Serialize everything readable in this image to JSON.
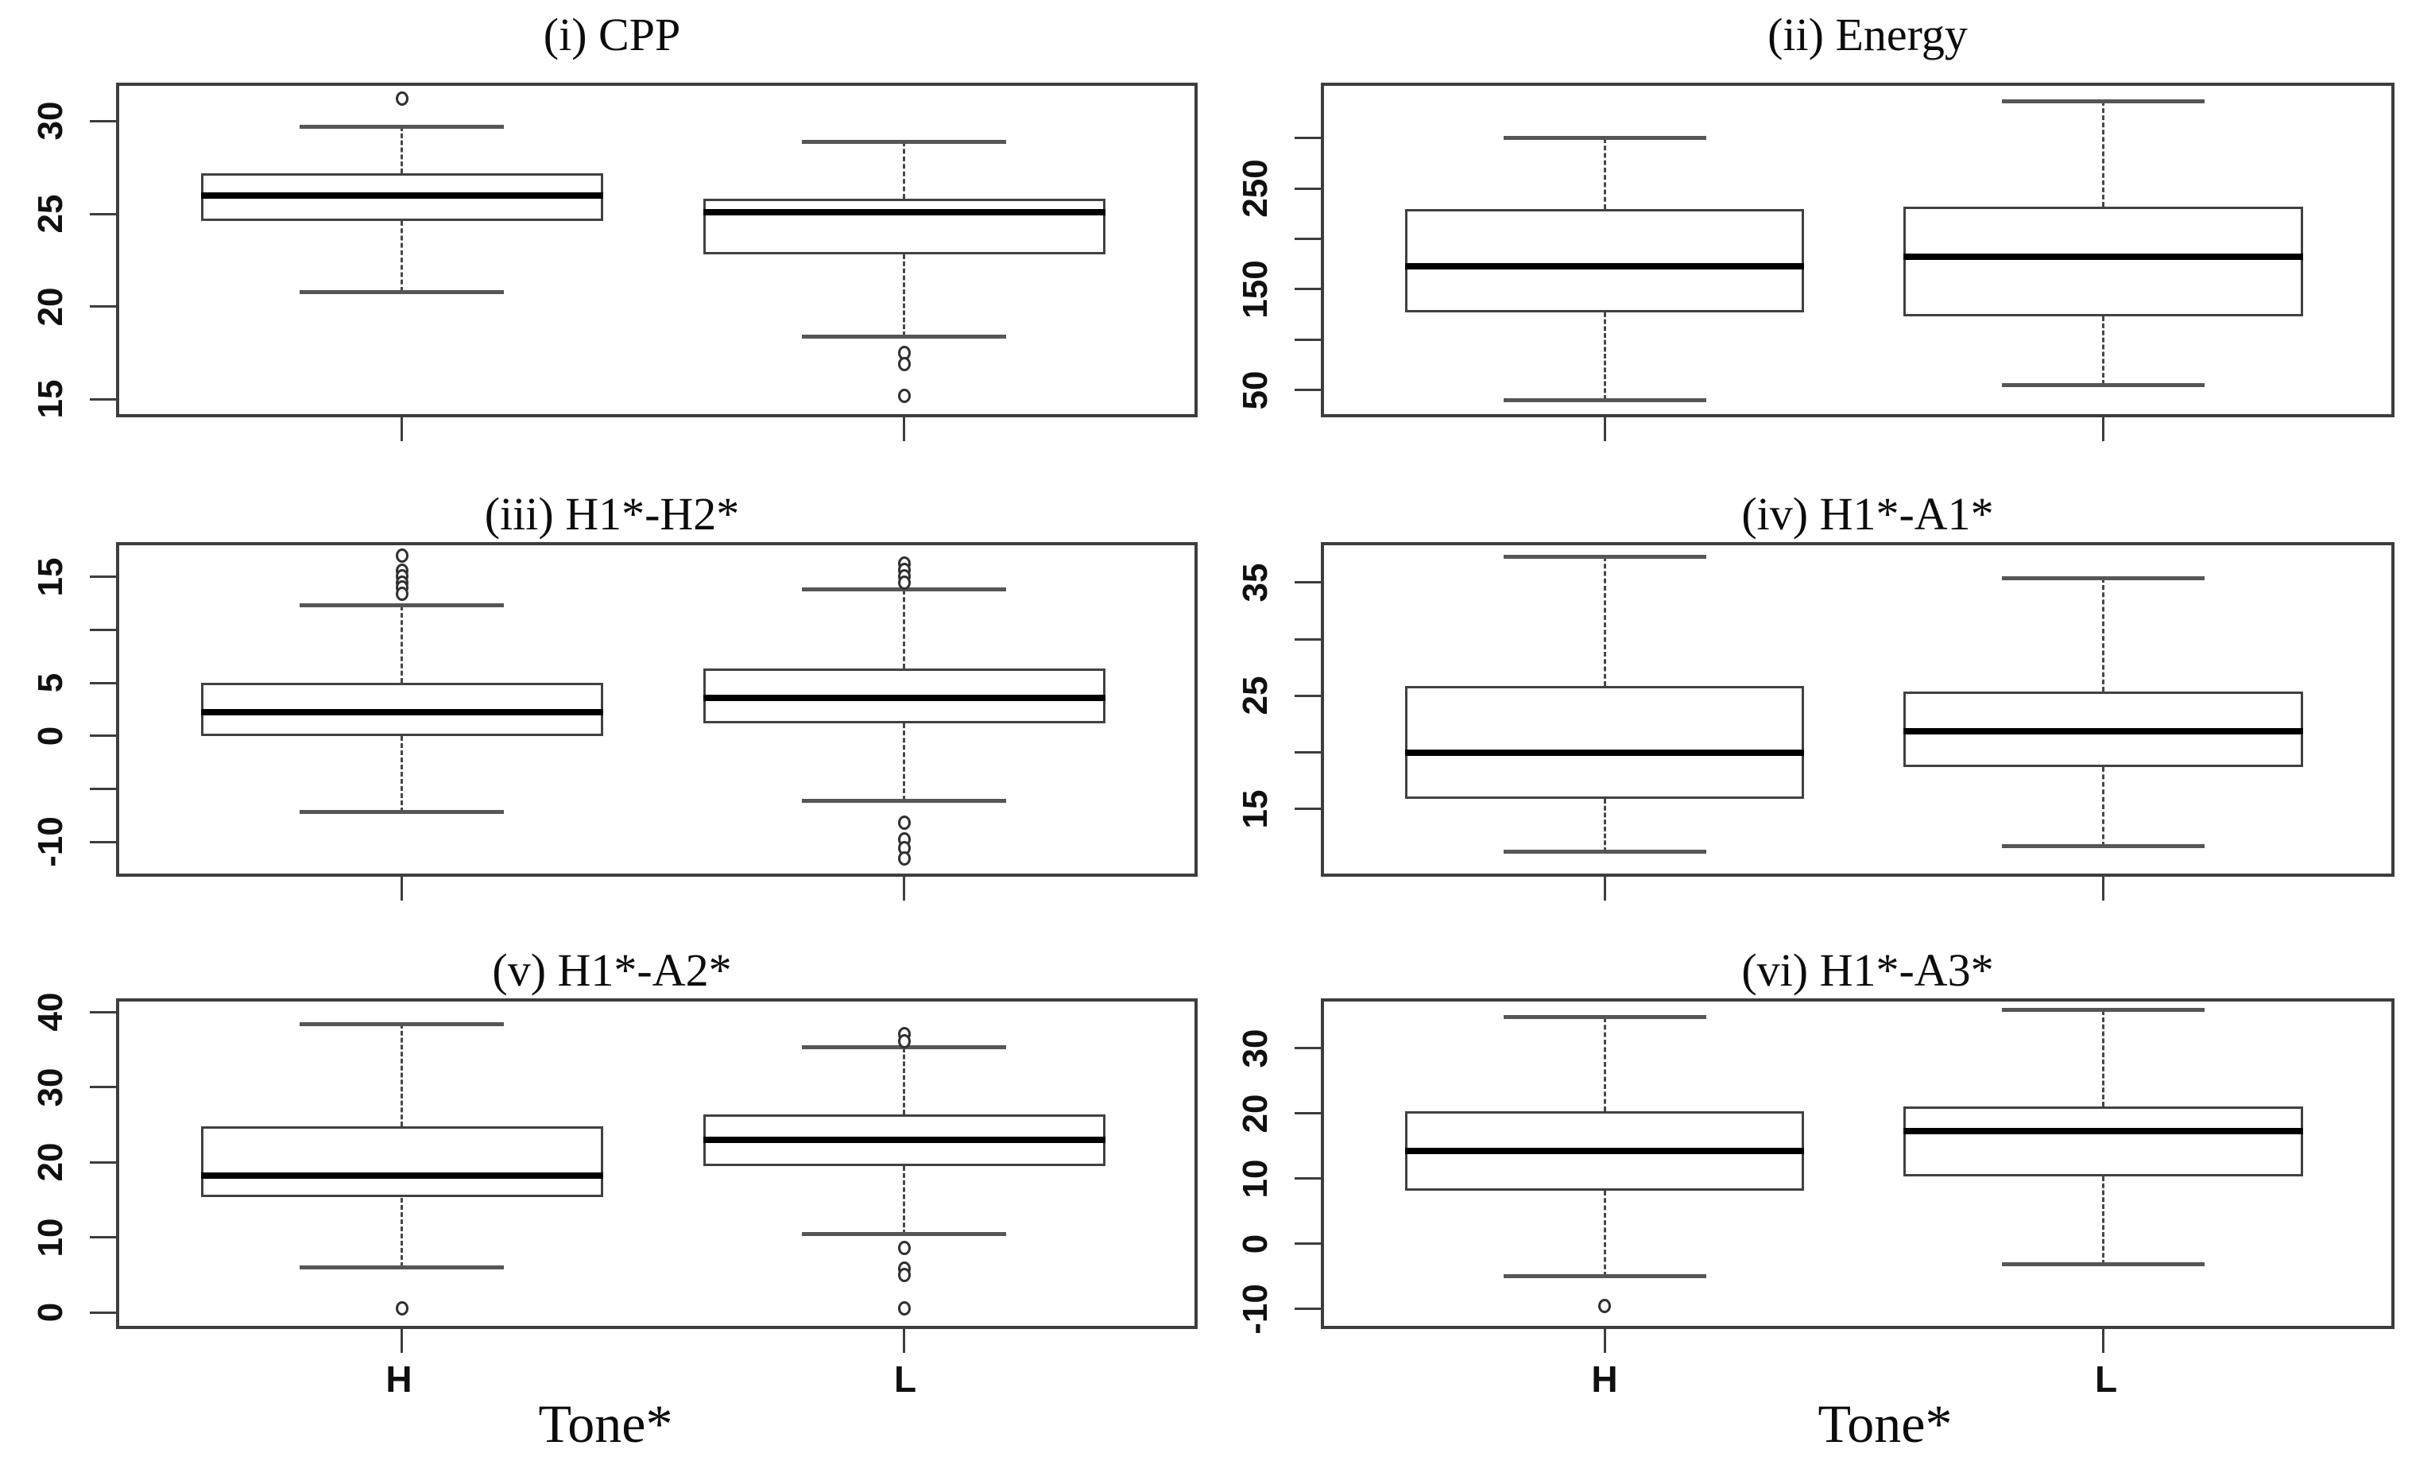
{
  "xlabel": "Tone*",
  "categories": [
    "H",
    "L"
  ],
  "colors": {
    "background": "#ffffff",
    "frame": "#3d3d3d",
    "box_border": "#414141",
    "median": "#000000",
    "whisker": "#474747",
    "cap": "#565656",
    "outlier": "#303030",
    "text": "#101010"
  },
  "chart_data": [
    {
      "type": "boxplot",
      "title": "(i) CPP",
      "categories": [
        "H",
        "L"
      ],
      "ylim": [
        14.2,
        31.9
      ],
      "yticks": [
        {
          "value": 15,
          "label": "15"
        },
        {
          "value": 20,
          "label": "20"
        },
        {
          "value": 25,
          "label": "25"
        },
        {
          "value": 30,
          "label": "30"
        }
      ],
      "series": [
        {
          "name": "H",
          "whisker_low": 20.8,
          "q1": 24.6,
          "median": 26.0,
          "q3": 27.2,
          "whisker_high": 29.7,
          "outliers_high": [
            31.2
          ],
          "outliers_low": []
        },
        {
          "name": "L",
          "whisker_low": 18.4,
          "q1": 22.8,
          "median": 25.1,
          "q3": 25.8,
          "whisker_high": 28.9,
          "outliers_high": [],
          "outliers_low": [
            17.5,
            16.9,
            15.2
          ]
        }
      ]
    },
    {
      "type": "boxplot",
      "title": "(ii) Energy",
      "categories": [
        "H",
        "L"
      ],
      "ylim": [
        26,
        352
      ],
      "yticks": [
        {
          "value": 50,
          "label": "50"
        },
        {
          "value": 100,
          "label": ""
        },
        {
          "value": 150,
          "label": "150"
        },
        {
          "value": 200,
          "label": ""
        },
        {
          "value": 250,
          "label": "250"
        },
        {
          "value": 300,
          "label": ""
        }
      ],
      "series": [
        {
          "name": "H",
          "whisker_low": 40,
          "q1": 127,
          "median": 173,
          "q3": 230,
          "whisker_high": 300,
          "outliers_high": [],
          "outliers_low": []
        },
        {
          "name": "L",
          "whisker_low": 55,
          "q1": 123,
          "median": 182,
          "q3": 232,
          "whisker_high": 337,
          "outliers_high": [],
          "outliers_low": []
        }
      ]
    },
    {
      "type": "boxplot",
      "title": "(iii) H1*-H2*",
      "categories": [
        "H",
        "L"
      ],
      "ylim": [
        -13.0,
        18.0
      ],
      "yticks": [
        {
          "value": -10,
          "label": "-10"
        },
        {
          "value": -5,
          "label": ""
        },
        {
          "value": 0,
          "label": "0"
        },
        {
          "value": 5,
          "label": "5"
        },
        {
          "value": 10,
          "label": ""
        },
        {
          "value": 15,
          "label": "15"
        }
      ],
      "series": [
        {
          "name": "H",
          "whisker_low": -7.2,
          "q1": 0.0,
          "median": 2.2,
          "q3": 5.0,
          "whisker_high": 12.3,
          "outliers_high": [
            17.0,
            15.6,
            15.1,
            14.5,
            14.0,
            13.4
          ],
          "outliers_low": []
        },
        {
          "name": "L",
          "whisker_low": -6.1,
          "q1": 1.2,
          "median": 3.6,
          "q3": 6.4,
          "whisker_high": 13.8,
          "outliers_high": [
            16.3,
            15.7,
            15.1,
            14.5
          ],
          "outliers_low": [
            -8.2,
            -9.8,
            -10.6,
            -11.6
          ]
        }
      ]
    },
    {
      "type": "boxplot",
      "title": "(iv) H1*-A1*",
      "categories": [
        "H",
        "L"
      ],
      "ylim": [
        9.3,
        38.3
      ],
      "yticks": [
        {
          "value": 15,
          "label": "15"
        },
        {
          "value": 20,
          "label": ""
        },
        {
          "value": 25,
          "label": "25"
        },
        {
          "value": 30,
          "label": ""
        },
        {
          "value": 35,
          "label": "35"
        }
      ],
      "series": [
        {
          "name": "H",
          "whisker_low": 11.2,
          "q1": 15.9,
          "median": 20.0,
          "q3": 25.9,
          "whisker_high": 37.3,
          "outliers_high": [],
          "outliers_low": []
        },
        {
          "name": "L",
          "whisker_low": 11.7,
          "q1": 18.7,
          "median": 21.9,
          "q3": 25.4,
          "whisker_high": 35.4,
          "outliers_high": [],
          "outliers_low": []
        }
      ]
    },
    {
      "type": "boxplot",
      "title": "(v) H1*-A2*",
      "categories": [
        "H",
        "L"
      ],
      "ylim": [
        -1.8,
        41.4
      ],
      "yticks": [
        {
          "value": 0,
          "label": "0"
        },
        {
          "value": 10,
          "label": "10"
        },
        {
          "value": 20,
          "label": "20"
        },
        {
          "value": 30,
          "label": "30"
        },
        {
          "value": 40,
          "label": "40"
        }
      ],
      "series": [
        {
          "name": "H",
          "whisker_low": 6.0,
          "q1": 15.3,
          "median": 18.2,
          "q3": 24.8,
          "whisker_high": 38.4,
          "outliers_high": [],
          "outliers_low": [
            0.5
          ]
        },
        {
          "name": "L",
          "whisker_low": 10.4,
          "q1": 19.5,
          "median": 23.0,
          "q3": 26.4,
          "whisker_high": 35.3,
          "outliers_high": [
            37.1,
            36.1
          ],
          "outliers_low": [
            8.6,
            5.8,
            5.0,
            0.5
          ]
        }
      ]
    },
    {
      "type": "boxplot",
      "title": "(vi) H1*-A3*",
      "categories": [
        "H",
        "L"
      ],
      "ylim": [
        -12.6,
        37.2
      ],
      "yticks": [
        {
          "value": -10,
          "label": "-10"
        },
        {
          "value": 0,
          "label": "0"
        },
        {
          "value": 10,
          "label": "10"
        },
        {
          "value": 20,
          "label": "20"
        },
        {
          "value": 30,
          "label": "30"
        }
      ],
      "series": [
        {
          "name": "H",
          "whisker_low": -5.0,
          "q1": 8.2,
          "median": 14.2,
          "q3": 20.4,
          "whisker_high": 34.8,
          "outliers_high": [],
          "outliers_low": [
            -9.6
          ]
        },
        {
          "name": "L",
          "whisker_low": -3.2,
          "q1": 10.4,
          "median": 17.3,
          "q3": 21.1,
          "whisker_high": 35.9,
          "outliers_high": [],
          "outliers_low": []
        }
      ]
    }
  ]
}
